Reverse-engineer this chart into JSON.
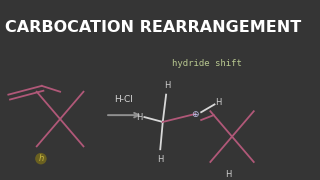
{
  "bg_color": "#353535",
  "title": "CARBOCATION REARRANGEMENT",
  "title_color": "#ffffff",
  "title_fontsize": 11.5,
  "title_weight": "bold",
  "subtitle": "hydride shift",
  "subtitle_color": "#b8c890",
  "subtitle_fontsize": 6.5,
  "pink": "#b05878",
  "white": "#d8d8d8",
  "gray": "#909090",
  "hcl_label": "H-Cl",
  "arrow_color": "#888888",
  "plus_color": "#c0c0e8",
  "h_label_color": "#d0d0d0",
  "h_small_color": "#c8b840"
}
